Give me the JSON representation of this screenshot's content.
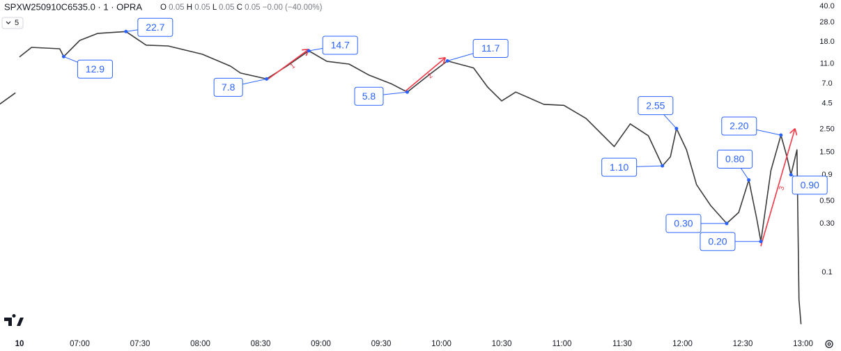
{
  "chart_data": {
    "type": "line",
    "symbol": "SPXW250910C6535.0 · 1 · OPRA",
    "ohlc": [
      {
        "key": "O",
        "value": "0.05"
      },
      {
        "key": "H",
        "value": "0.05"
      },
      {
        "key": "L",
        "value": "0.05"
      },
      {
        "key": "C",
        "value": "0.05"
      }
    ],
    "change": "−0.00 (−40.00%)",
    "interval": "5",
    "log_scale": true,
    "ylim": [
      46.2,
      0.0255
    ],
    "yticks": [
      {
        "value": 40,
        "label": "40.0"
      },
      {
        "value": 28,
        "label": "28.0"
      },
      {
        "value": 18,
        "label": "18.0"
      },
      {
        "value": 11,
        "label": "11.0"
      },
      {
        "value": 7,
        "label": "7.0"
      },
      4.5,
      {
        "value": 2.5,
        "label": "2.50"
      },
      {
        "value": 1.5,
        "label": "1.50"
      },
      0.9,
      {
        "value": 0.5,
        "label": "0.50"
      },
      {
        "value": 0.3,
        "label": "0.30"
      },
      0.1
    ],
    "xticks": [
      {
        "value": "06:30",
        "label": "10"
      },
      "07:00",
      "07:30",
      "08:00",
      "08:30",
      "09:00",
      "09:30",
      "10:00",
      "10:30",
      "11:00",
      "11:30",
      "12:00",
      "12:30",
      "13:00"
    ],
    "series": [
      {
        "color": "#3a3a3a",
        "x": [
          "06:20",
          "06:28",
          "06:29",
          "06:30",
          "06:36",
          "06:50",
          "06:52",
          "07:00",
          "07:09",
          "07:23",
          "07:33",
          "07:44",
          "08:01",
          "08:15",
          "08:20",
          "08:33",
          "08:43",
          "08:54",
          "09:03",
          "09:14",
          "09:24",
          "09:35",
          "09:43",
          "09:55",
          "10:03",
          "10:16",
          "10:23",
          "10:30",
          "10:37",
          "10:51",
          "11:01",
          "11:12",
          "11:26",
          "11:34",
          "11:43",
          "11:50",
          "11:54",
          "11:57",
          "12:02",
          "12:07",
          "12:14",
          "12:22",
          "12:28",
          "12:33",
          "12:37",
          "12:39",
          "12:44",
          "12:49",
          "12:52",
          "12:54",
          "12:57",
          "12:58",
          "12:59"
        ],
        "values": [
          4.4,
          5.7,
          null,
          12.8,
          15.9,
          15.4,
          12.9,
          18.6,
          21.8,
          22.7,
          16.7,
          16.4,
          13.6,
          10.4,
          8.9,
          7.8,
          10.4,
          14.7,
          11.6,
          10.9,
          8.5,
          7.0,
          5.8,
          8.9,
          11.7,
          10.0,
          6.5,
          4.75,
          5.8,
          4.4,
          4.3,
          3.2,
          1.7,
          2.83,
          2.17,
          1.1,
          1.35,
          2.55,
          1.58,
          0.72,
          0.45,
          0.3,
          0.385,
          0.8,
          0.33,
          0.2,
          0.99,
          2.2,
          1.35,
          0.9,
          1.58,
          0.054,
          0.031
        ]
      }
    ],
    "annotations": [
      {
        "x": "06:52",
        "value": 12.9,
        "label": "12.9"
      },
      {
        "x": "07:23",
        "value": 22.7,
        "label": "22.7"
      },
      {
        "x": "08:33",
        "value": 7.8,
        "label": "7.8"
      },
      {
        "x": "08:54",
        "value": 14.7,
        "label": "14.7"
      },
      {
        "x": "09:43",
        "value": 5.8,
        "label": "5.8"
      },
      {
        "x": "10:03",
        "value": 11.7,
        "label": "11.7"
      },
      {
        "x": "11:50",
        "value": 1.1,
        "label": "1.10"
      },
      {
        "x": "11:57",
        "value": 2.55,
        "label": "2.55"
      },
      {
        "x": "12:22",
        "value": 0.3,
        "label": "0.30"
      },
      {
        "x": "12:33",
        "value": 0.8,
        "label": "0.80"
      },
      {
        "x": "12:39",
        "value": 0.2,
        "label": "0.20"
      },
      {
        "x": "12:49",
        "value": 2.2,
        "label": "2.20"
      },
      {
        "x": "12:54",
        "value": 0.9,
        "label": "0.90"
      }
    ],
    "arrows": [
      {
        "label": "1",
        "x": [
          "08:33",
          "08:54"
        ],
        "values": [
          7.6,
          15.2
        ]
      },
      {
        "label": "2",
        "x": [
          "09:42",
          "10:02"
        ],
        "values": [
          5.9,
          12.6
        ]
      },
      {
        "label": "3",
        "x": [
          "12:39",
          "12:56"
        ],
        "values": [
          0.18,
          2.55
        ]
      }
    ]
  }
}
